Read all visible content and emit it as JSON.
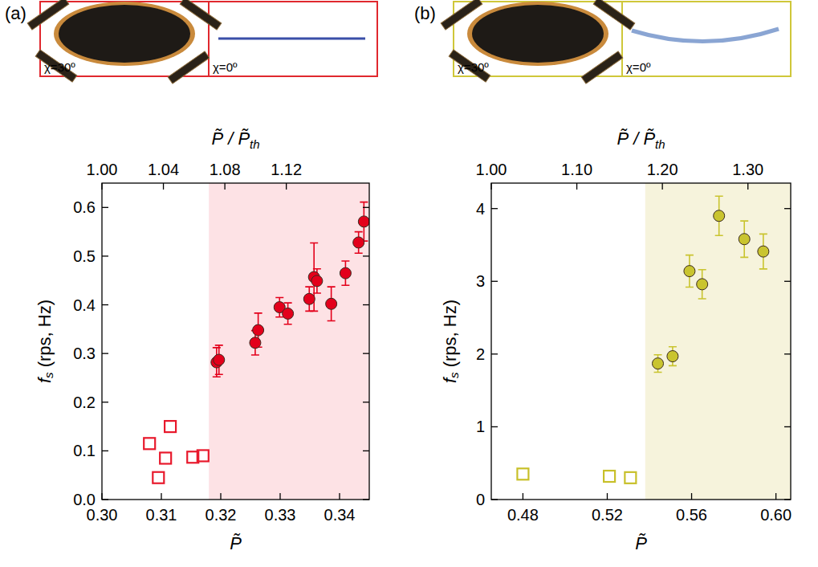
{
  "chart_data": [
    {
      "type": "scatter",
      "panel_label": "(a)",
      "color": "#e0282e",
      "insets": [
        {
          "label": "χ=30º"
        },
        {
          "label": "χ=0º"
        }
      ],
      "xlabel": "P̃",
      "x2label": "P̃ / P̃",
      "x2label_sub": "th",
      "ylabel": "f",
      "ylabel_sub": "s",
      "ylabel_rest": " (rps, Hz)",
      "xlim": [
        0.3,
        0.345
      ],
      "xticks": [
        {
          "value": 0.3,
          "label": "0.30"
        },
        0.31,
        0.32,
        0.33,
        0.34
      ],
      "x2lim": [
        1.0,
        1.174
      ],
      "x2ticks": [
        {
          "value": 1.0,
          "label": "1.00"
        },
        1.04,
        1.08,
        1.12
      ],
      "ylim": [
        0,
        0.65
      ],
      "yticks": [
        {
          "value": 0,
          "label": "0.0"
        },
        0.1,
        0.2,
        0.3,
        0.4,
        0.5,
        0.6
      ],
      "shaded": {
        "x": [
          0.318,
          0.345
        ],
        "color": "#fde2e5"
      },
      "series": [
        {
          "color": "#e8192c",
          "marker": "square-open",
          "x": [
            0.308,
            0.3095,
            0.3107,
            0.3115,
            0.3153,
            0.317
          ],
          "values": [
            0.115,
            0.045,
            0.085,
            0.15,
            0.087,
            0.09
          ]
        },
        {
          "color": "#e3001b",
          "marker": "circle",
          "x": [
            0.3193,
            0.3197,
            0.3258,
            0.3263,
            0.3299,
            0.3313,
            0.3349,
            0.3357,
            0.3362,
            0.3386,
            0.341,
            0.3432,
            0.3441
          ],
          "values": [
            0.282,
            0.287,
            0.322,
            0.348,
            0.395,
            0.382,
            0.412,
            0.457,
            0.449,
            0.402,
            0.465,
            0.528,
            0.571
          ],
          "errors": [
            0.03,
            0.03,
            0.025,
            0.035,
            0.02,
            0.022,
            0.025,
            0.07,
            0.025,
            0.035,
            0.025,
            0.022,
            0.04
          ]
        }
      ]
    },
    {
      "type": "scatter",
      "panel_label": "(b)",
      "color": "#cfc73a",
      "insets": [
        {
          "label": "χ=30º"
        },
        {
          "label": "χ=0º"
        }
      ],
      "xlabel": "P̃",
      "x2label": "P̃ / P̃",
      "x2label_sub": "th",
      "ylabel": "f",
      "ylabel_sub": "s",
      "ylabel_rest": " (rps, Hz)",
      "xlim": [
        0.465,
        0.607
      ],
      "xticks": [
        0.48,
        0.52,
        0.56,
        {
          "value": 0.6,
          "label": "0.60"
        }
      ],
      "x2lim": [
        1.0,
        1.35
      ],
      "x2ticks": [
        {
          "value": 1.0,
          "label": "1.00"
        },
        {
          "value": 1.1,
          "label": "1.10"
        },
        {
          "value": 1.2,
          "label": "1.20"
        },
        {
          "value": 1.3,
          "label": "1.30"
        }
      ],
      "ylim": [
        0,
        4.35
      ],
      "yticks": [
        0,
        1,
        2,
        3,
        4
      ],
      "shaded": {
        "x": [
          0.538,
          0.607
        ],
        "color": "#f6f3dc"
      },
      "series": [
        {
          "color": "#c8c02a",
          "marker": "square-open",
          "x": [
            0.48,
            0.521,
            0.531
          ],
          "values": [
            0.35,
            0.32,
            0.3
          ]
        },
        {
          "color": "#c9c42f",
          "marker": "circle",
          "x": [
            0.544,
            0.551,
            0.559,
            0.565,
            0.573,
            0.585,
            0.594
          ],
          "values": [
            1.87,
            1.97,
            3.14,
            2.96,
            3.9,
            3.58,
            3.41
          ],
          "errors": [
            0.12,
            0.13,
            0.22,
            0.2,
            0.27,
            0.25,
            0.24
          ]
        }
      ]
    }
  ]
}
